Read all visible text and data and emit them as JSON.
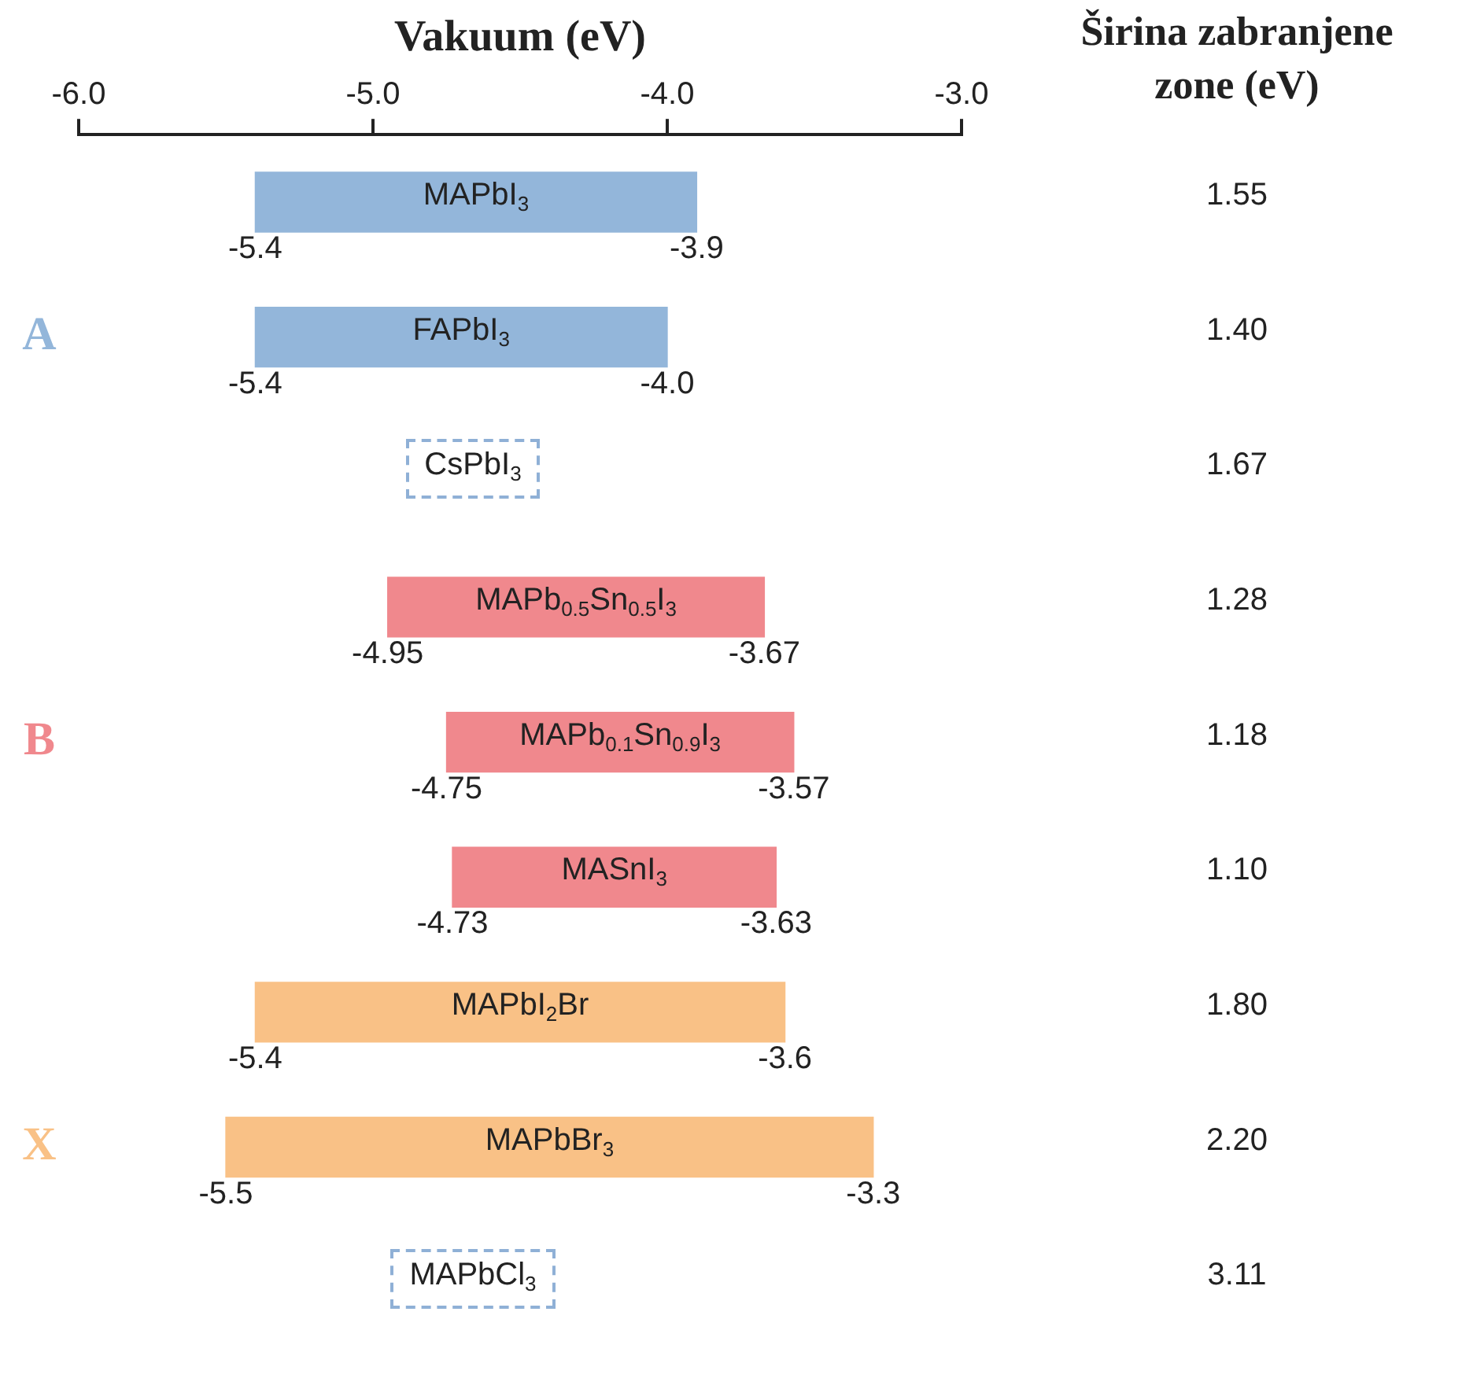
{
  "chart_data": {
    "type": "bar",
    "orientation": "horizontal",
    "xlabel": "Vakuum (eV)",
    "categories": [
      "MAPbI$_{3}$",
      "FAPbI$_{3}$",
      "CsPbI$_{3}$",
      "MAPb$_{0.5}$Sn$_{0.5}$I$_{3}$",
      "MAPb$_{0.1}$Sn$_{0.9}$I$_{3}$",
      "MASnI$_{3}$",
      "MAPbI$_{2}$Br",
      "MAPbBr$_{3}$",
      "MAPbCl$_{3}$"
    ],
    "series": [
      {
        "name": "A",
        "color": "#93b6da",
        "base": [
          -5.4,
          -5.4,
          null,
          null,
          null,
          null,
          null,
          null,
          null
        ],
        "values": [
          1.5,
          1.4,
          null,
          null,
          null,
          null,
          null,
          null,
          null
        ]
      },
      {
        "name": "B",
        "color": "#f0888d",
        "base": [
          null,
          null,
          null,
          -4.95,
          -4.75,
          -4.73,
          null,
          null,
          null
        ],
        "values": [
          null,
          null,
          null,
          1.28,
          1.18,
          1.1,
          null,
          null,
          null
        ]
      },
      {
        "name": "X",
        "color": "#f9c186",
        "base": [
          null,
          null,
          null,
          null,
          null,
          null,
          -5.4,
          -5.5,
          null
        ],
        "values": [
          null,
          null,
          null,
          null,
          null,
          null,
          1.8,
          2.2,
          null
        ]
      }
    ],
    "xlim": [
      -6,
      -3
    ],
    "xticks": [
      {
        "value": -6,
        "label": "-6.0"
      },
      {
        "value": -5,
        "label": "-5.0"
      },
      {
        "value": -4,
        "label": "-4.0"
      },
      {
        "value": -3,
        "label": "-3.0"
      }
    ],
    "tick_labels": "x",
    "grid": false,
    "legend": false,
    "annotations": [
      "Širina zabranjene zone (eV)",
      {
        "text": "-5.4",
        "x": -5.4,
        "y": "MAPbI$_{3}$"
      },
      {
        "text": "-3.9",
        "x": -3.9,
        "y": "MAPbI$_{3}$"
      },
      {
        "text": "-5.4",
        "x": -5.4,
        "y": "FAPbI$_{3}$"
      },
      {
        "text": "-4.0",
        "x": -4.0,
        "y": "FAPbI$_{3}$"
      },
      {
        "text": "-4.95",
        "x": -4.95,
        "y": "MAPb$_{0.5}$Sn$_{0.5}$I$_{3}$"
      },
      {
        "text": "-3.67",
        "x": -3.67,
        "y": "MAPb$_{0.5}$Sn$_{0.5}$I$_{3}$"
      },
      {
        "text": "-4.75",
        "x": -4.75,
        "y": "MAPb$_{0.1}$Sn$_{0.9}$I$_{3}$"
      },
      {
        "text": "-3.57",
        "x": -3.57,
        "y": "MAPb$_{0.1}$Sn$_{0.9}$I$_{3}$"
      },
      {
        "text": "-4.73",
        "x": -4.73,
        "y": "MASnI$_{3}$"
      },
      {
        "text": "-3.63",
        "x": -3.63,
        "y": "MASnI$_{3}$"
      },
      {
        "text": "-5.4",
        "x": -5.4,
        "y": "MAPbI$_{2}$Br"
      },
      {
        "text": "-3.6",
        "x": -3.6,
        "y": "MAPbI$_{2}$Br"
      },
      {
        "text": "-5.5",
        "x": -5.5,
        "y": "MAPbBr$_{3}$"
      },
      {
        "text": "-3.3",
        "x": -3.3,
        "y": "MAPbBr$_{3}$"
      },
      "1.55",
      "1.40",
      "1.67",
      "1.28",
      "1.18",
      "1.10",
      "1.80",
      "2.20",
      "3.11"
    ]
  }
}
